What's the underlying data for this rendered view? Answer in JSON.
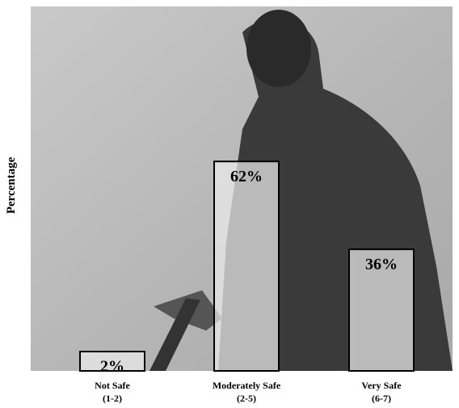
{
  "chart_data": {
    "type": "bar",
    "y_label": "Percentage",
    "categories": [
      "Not Safe",
      "Moderately Safe",
      "Very Safe"
    ],
    "category_sublabels": [
      "(1-2)",
      "(2-5)",
      "(6-7)"
    ],
    "values": [
      2,
      62,
      36
    ],
    "value_labels": [
      "2%",
      "62%",
      "36%"
    ],
    "ylim": [
      0,
      100
    ],
    "grid": false
  }
}
